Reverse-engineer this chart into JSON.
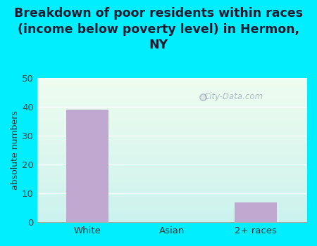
{
  "title": "Breakdown of poor residents within races\n(income below poverty level) in Hermon,\nNY",
  "categories": [
    "White",
    "Asian",
    "2+ races"
  ],
  "values": [
    39,
    0,
    7
  ],
  "bar_color": "#c0a8d0",
  "ylabel": "absolute numbers",
  "ylim": [
    0,
    50
  ],
  "yticks": [
    0,
    10,
    20,
    30,
    40,
    50
  ],
  "background_color": "#00eeff",
  "plot_bg_topleft": "#e8f5e8",
  "plot_bg_bottomright": "#c8f0f0",
  "title_fontsize": 12.5,
  "title_color": "#1a1a2e",
  "axis_label_fontsize": 9,
  "tick_fontsize": 9.5,
  "watermark": "City-Data.com",
  "grid_color": "#d8eed8"
}
